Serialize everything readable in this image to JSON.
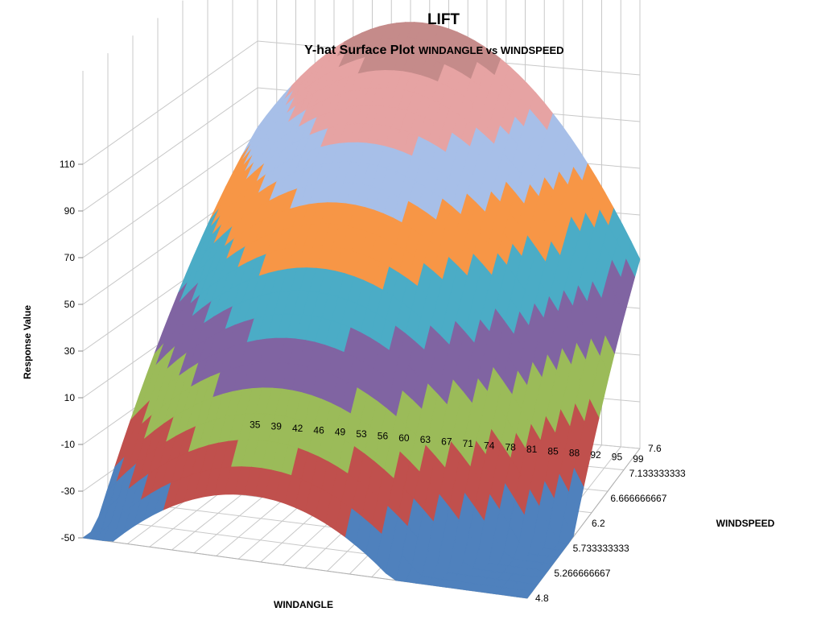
{
  "chart_data": {
    "type": "surface",
    "title": "LIFT",
    "subtitle_main": "Y-hat Surface Plot",
    "subtitle_detail": "WINDANGLE vs WINDSPEED",
    "xlabel": "WINDANGLE",
    "ylabel": "Response Value",
    "depth_label": "WINDSPEED",
    "x_ticks": [
      "35",
      "39",
      "42",
      "46",
      "49",
      "53",
      "56",
      "60",
      "63",
      "67",
      "71",
      "74",
      "78",
      "81",
      "85",
      "88",
      "92",
      "95",
      "99"
    ],
    "depth_ticks": [
      "4.8",
      "5.266666667",
      "5.733333333",
      "6.2",
      "6.666666667",
      "7.133333333",
      "7.6"
    ],
    "z_ticks": [
      "-50",
      "-30",
      "-10",
      "10",
      "30",
      "50",
      "70",
      "90",
      "110"
    ],
    "z_range": [
      -50,
      130
    ],
    "bands": [
      {
        "range": [
          -50,
          -30
        ],
        "color": "#4f81bd"
      },
      {
        "range": [
          -30,
          -10
        ],
        "color": "#c0504d"
      },
      {
        "range": [
          -10,
          10
        ],
        "color": "#9bbb59"
      },
      {
        "range": [
          10,
          30
        ],
        "color": "#8064a2"
      },
      {
        "range": [
          30,
          50
        ],
        "color": "#4bacc6"
      },
      {
        "range": [
          50,
          70
        ],
        "color": "#f79646"
      },
      {
        "range": [
          70,
          90
        ],
        "color": "#a7bfe8"
      },
      {
        "range": [
          90,
          110
        ],
        "color": "#e6a3a3"
      },
      {
        "range": [
          110,
          130
        ],
        "color": "#c58b8a"
      }
    ],
    "grid": true
  }
}
